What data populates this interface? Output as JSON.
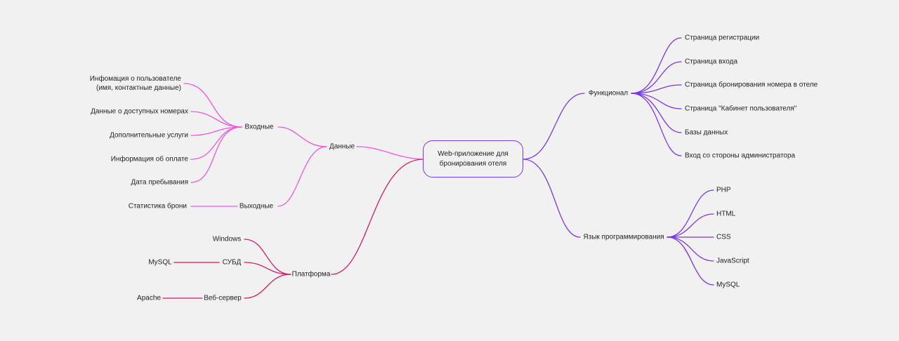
{
  "root": {
    "line1": "Web-приложение для",
    "line2": "бронирования отеля"
  },
  "colors": {
    "pink": "#ee55e0",
    "crimson": "#d41a6a",
    "purple": "#7a36e8",
    "text": "#1f1f1f",
    "background": "#f1f1f1"
  },
  "left": {
    "data": {
      "label": "Данные",
      "inputs": {
        "label": "Входные",
        "items": [
          [
            "Инфомация о пользователе",
            "(имя, контактные данные)"
          ],
          "Данные о доступных номерах",
          "Дополнительные услуги",
          "Информация об оплате",
          "Дата пребывания"
        ]
      },
      "outputs": {
        "label": "Выходные",
        "items": [
          "Статистика брони"
        ]
      }
    },
    "platform": {
      "label": "Платформа",
      "os": {
        "label": "Windows"
      },
      "dbms": {
        "label": "СУБД",
        "child": "MySQL"
      },
      "webserver": {
        "label": "Веб-сервер",
        "child": "Apache"
      }
    }
  },
  "right": {
    "functionality": {
      "label": "Функционал",
      "items": [
        "Страница регистрации",
        "Страница входа",
        "Страница бронирования номера в отеле",
        "Страница \"Кабинет пользователя\"",
        "Базы данных",
        "Вход со стороны администратора"
      ]
    },
    "languages": {
      "label": "Язык программирования",
      "items": [
        "PHP",
        "HTML",
        "CSS",
        "JavaScript",
        "MySQL"
      ]
    }
  }
}
